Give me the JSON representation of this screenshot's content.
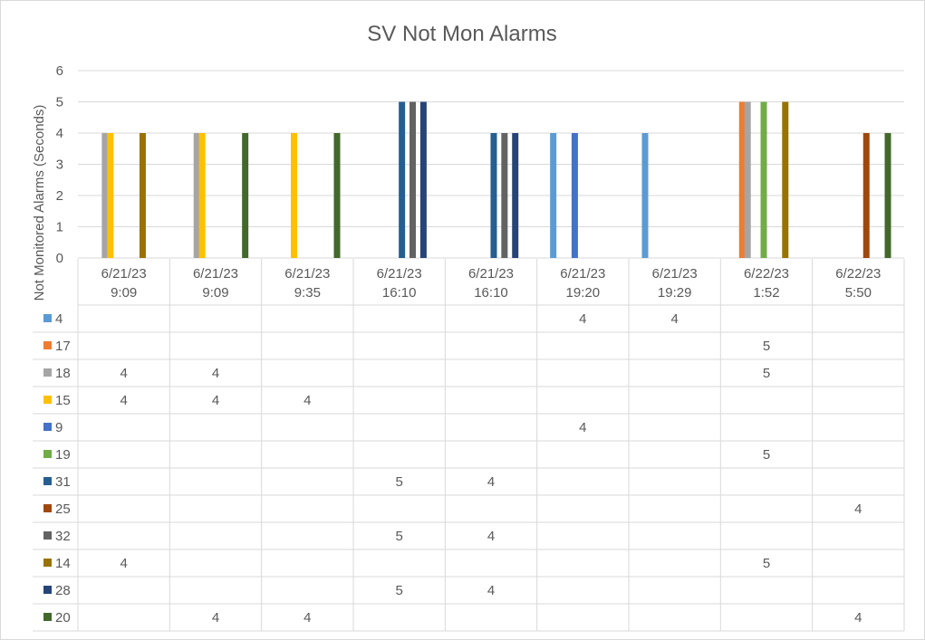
{
  "chart_data": {
    "type": "bar",
    "title": "SV Not Mon Alarms",
    "ylabel": "Not Monitored Alarms (Seconds)",
    "xlabel": "",
    "ylim": [
      0,
      6
    ],
    "yticks": [
      0,
      1,
      2,
      3,
      4,
      5,
      6
    ],
    "grid": true,
    "legend": "data-table",
    "categories": [
      [
        "6/21/23",
        "9:09"
      ],
      [
        "6/21/23",
        "9:09"
      ],
      [
        "6/21/23",
        "9:35"
      ],
      [
        "6/21/23",
        "16:10"
      ],
      [
        "6/21/23",
        "16:10"
      ],
      [
        "6/21/23",
        "19:20"
      ],
      [
        "6/21/23",
        "19:29"
      ],
      [
        "6/22/23",
        "1:52"
      ],
      [
        "6/22/23",
        "5:50"
      ]
    ],
    "series": [
      {
        "name": "4",
        "color": "#5b9bd5",
        "values": [
          null,
          null,
          null,
          null,
          null,
          4,
          4,
          null,
          null
        ]
      },
      {
        "name": "17",
        "color": "#ed7d31",
        "values": [
          null,
          null,
          null,
          null,
          null,
          null,
          null,
          5,
          null
        ]
      },
      {
        "name": "18",
        "color": "#a5a5a5",
        "values": [
          4,
          4,
          null,
          null,
          null,
          null,
          null,
          5,
          null
        ]
      },
      {
        "name": "15",
        "color": "#ffc000",
        "values": [
          4,
          4,
          4,
          null,
          null,
          null,
          null,
          null,
          null
        ]
      },
      {
        "name": "9",
        "color": "#4472c4",
        "values": [
          null,
          null,
          null,
          null,
          null,
          4,
          null,
          null,
          null
        ]
      },
      {
        "name": "19",
        "color": "#70ad47",
        "values": [
          null,
          null,
          null,
          null,
          null,
          null,
          null,
          5,
          null
        ]
      },
      {
        "name": "31",
        "color": "#255e91",
        "values": [
          null,
          null,
          null,
          5,
          4,
          null,
          null,
          null,
          null
        ]
      },
      {
        "name": "25",
        "color": "#9e480e",
        "values": [
          null,
          null,
          null,
          null,
          null,
          null,
          null,
          null,
          4
        ]
      },
      {
        "name": "32",
        "color": "#636363",
        "values": [
          null,
          null,
          null,
          5,
          4,
          null,
          null,
          null,
          null
        ]
      },
      {
        "name": "14",
        "color": "#997300",
        "values": [
          4,
          null,
          null,
          null,
          null,
          null,
          null,
          5,
          null
        ]
      },
      {
        "name": "28",
        "color": "#264478",
        "values": [
          null,
          null,
          null,
          5,
          4,
          null,
          null,
          null,
          null
        ]
      },
      {
        "name": "20",
        "color": "#43682b",
        "values": [
          null,
          4,
          4,
          null,
          null,
          null,
          null,
          null,
          4
        ]
      }
    ]
  }
}
